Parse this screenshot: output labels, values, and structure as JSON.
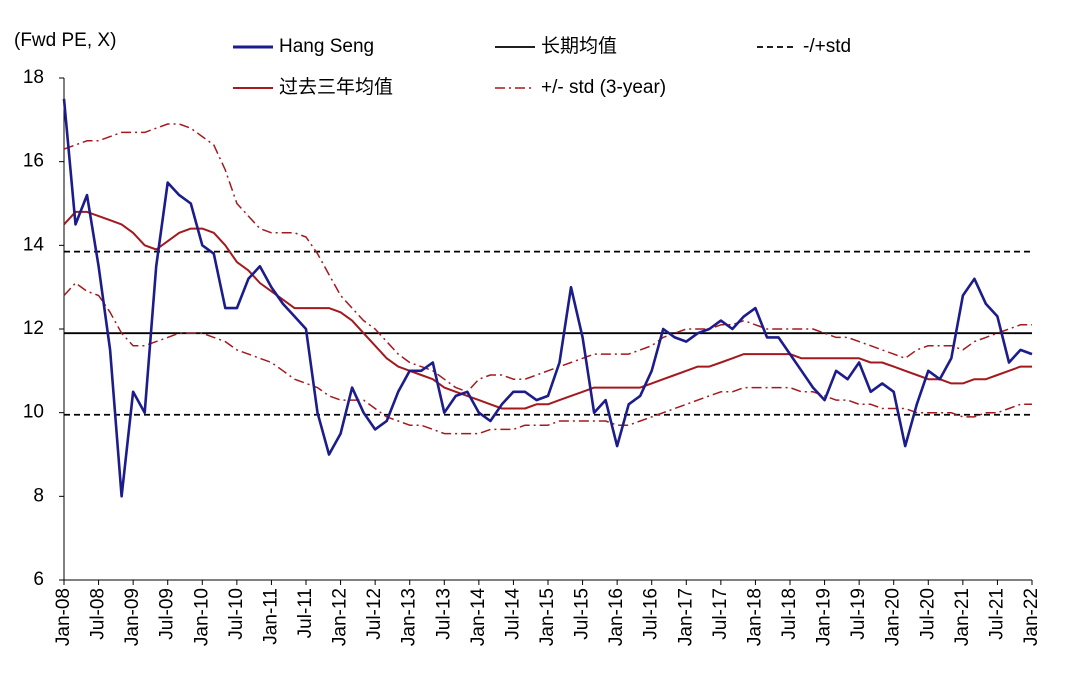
{
  "chart_data": {
    "type": "line",
    "y_label": "(Fwd PE, X)",
    "x": [
      "Jan-08",
      "Mar-08",
      "May-08",
      "Jul-08",
      "Sep-08",
      "Nov-08",
      "Jan-09",
      "Mar-09",
      "May-09",
      "Jul-09",
      "Sep-09",
      "Nov-09",
      "Jan-10",
      "Mar-10",
      "May-10",
      "Jul-10",
      "Sep-10",
      "Nov-10",
      "Jan-11",
      "Mar-11",
      "May-11",
      "Jul-11",
      "Sep-11",
      "Nov-11",
      "Jan-12",
      "Mar-12",
      "May-12",
      "Jul-12",
      "Sep-12",
      "Nov-12",
      "Jan-13",
      "Mar-13",
      "May-13",
      "Jul-13",
      "Sep-13",
      "Nov-13",
      "Jan-14",
      "Mar-14",
      "May-14",
      "Jul-14",
      "Sep-14",
      "Nov-14",
      "Jan-15",
      "Mar-15",
      "May-15",
      "Jul-15",
      "Sep-15",
      "Nov-15",
      "Jan-16",
      "Mar-16",
      "May-16",
      "Jul-16",
      "Sep-16",
      "Nov-16",
      "Jan-17",
      "Mar-17",
      "May-17",
      "Jul-17",
      "Sep-17",
      "Nov-17",
      "Jan-18",
      "Mar-18",
      "May-18",
      "Jul-18",
      "Sep-18",
      "Nov-18",
      "Jan-19",
      "Mar-19",
      "May-19",
      "Jul-19",
      "Sep-19",
      "Nov-19",
      "Jan-20",
      "Mar-20",
      "May-20",
      "Jul-20",
      "Sep-20",
      "Nov-20",
      "Jan-21",
      "Mar-21",
      "May-21",
      "Jul-21",
      "Sep-21",
      "Nov-21",
      "Jan-22"
    ],
    "xticks": [
      "Jan-08",
      "Jul-08",
      "Jan-09",
      "Jul-09",
      "Jan-10",
      "Jul-10",
      "Jan-11",
      "Jul-11",
      "Jan-12",
      "Jul-12",
      "Jan-13",
      "Jul-13",
      "Jan-14",
      "Jul-14",
      "Jan-15",
      "Jul-15",
      "Jan-16",
      "Jul-16",
      "Jan-17",
      "Jul-17",
      "Jan-18",
      "Jul-18",
      "Jan-19",
      "Jul-19",
      "Jan-20",
      "Jul-20",
      "Jan-21",
      "Jul-21",
      "Jan-22"
    ],
    "series": [
      {
        "name": "Hang Seng",
        "color": "#1c1c8c",
        "width": 2.6,
        "values": [
          17.5,
          14.5,
          15.2,
          13.5,
          11.5,
          8.0,
          10.5,
          10.0,
          13.5,
          15.5,
          15.2,
          15.0,
          14.0,
          13.8,
          12.5,
          12.5,
          13.2,
          13.5,
          13.0,
          12.6,
          12.3,
          12.0,
          10.0,
          9.0,
          9.5,
          10.6,
          10.0,
          9.6,
          9.8,
          10.5,
          11.0,
          11.0,
          11.2,
          10.0,
          10.4,
          10.5,
          10.0,
          9.8,
          10.2,
          10.5,
          10.5,
          10.3,
          10.4,
          11.2,
          13.0,
          11.8,
          10.0,
          10.3,
          9.2,
          10.2,
          10.4,
          11.0,
          12.0,
          11.8,
          11.7,
          11.9,
          12.0,
          12.2,
          12.0,
          12.3,
          12.5,
          11.8,
          11.8,
          11.4,
          11.0,
          10.6,
          10.3,
          11.0,
          10.8,
          11.2,
          10.5,
          10.7,
          10.5,
          9.2,
          10.2,
          11.0,
          10.8,
          11.3,
          12.8,
          13.2,
          12.6,
          12.3,
          11.2,
          11.5,
          11.4
        ]
      },
      {
        "name": "过去三年均值",
        "color": "#a3191e",
        "width": 2,
        "values": [
          14.5,
          14.8,
          14.8,
          14.7,
          14.6,
          14.5,
          14.3,
          14.0,
          13.9,
          14.1,
          14.3,
          14.4,
          14.4,
          14.3,
          14.0,
          13.6,
          13.4,
          13.1,
          12.9,
          12.7,
          12.5,
          12.5,
          12.5,
          12.5,
          12.4,
          12.2,
          11.9,
          11.6,
          11.3,
          11.1,
          11.0,
          10.9,
          10.8,
          10.6,
          10.5,
          10.4,
          10.3,
          10.2,
          10.1,
          10.1,
          10.1,
          10.2,
          10.2,
          10.3,
          10.4,
          10.5,
          10.6,
          10.6,
          10.6,
          10.6,
          10.6,
          10.7,
          10.8,
          10.9,
          11.0,
          11.1,
          11.1,
          11.2,
          11.3,
          11.4,
          11.4,
          11.4,
          11.4,
          11.4,
          11.3,
          11.3,
          11.3,
          11.3,
          11.3,
          11.3,
          11.2,
          11.2,
          11.1,
          11.0,
          10.9,
          10.8,
          10.8,
          10.7,
          10.7,
          10.8,
          10.8,
          10.9,
          11.0,
          11.1,
          11.1
        ]
      }
    ],
    "band": {
      "name": "+/- std (3-year)",
      "color": "#a3191e",
      "upper": [
        16.3,
        16.4,
        16.5,
        16.5,
        16.6,
        16.7,
        16.7,
        16.7,
        16.8,
        16.9,
        16.9,
        16.8,
        16.6,
        16.4,
        15.8,
        15.0,
        14.7,
        14.4,
        14.3,
        14.3,
        14.3,
        14.2,
        13.8,
        13.3,
        12.8,
        12.5,
        12.2,
        12.0,
        11.7,
        11.4,
        11.2,
        11.1,
        11.0,
        10.8,
        10.6,
        10.5,
        10.8,
        10.9,
        10.9,
        10.8,
        10.8,
        10.9,
        11.0,
        11.1,
        11.2,
        11.3,
        11.4,
        11.4,
        11.4,
        11.4,
        11.5,
        11.6,
        11.8,
        11.9,
        12.0,
        12.0,
        12.0,
        12.1,
        12.1,
        12.2,
        12.1,
        12.0,
        12.0,
        12.0,
        12.0,
        12.0,
        11.9,
        11.8,
        11.8,
        11.7,
        11.6,
        11.5,
        11.4,
        11.3,
        11.5,
        11.6,
        11.6,
        11.6,
        11.5,
        11.7,
        11.8,
        11.9,
        12.0,
        12.1,
        12.1
      ],
      "lower": [
        12.8,
        13.1,
        12.9,
        12.8,
        12.4,
        11.9,
        11.6,
        11.6,
        11.7,
        11.8,
        11.9,
        11.9,
        11.9,
        11.8,
        11.7,
        11.5,
        11.4,
        11.3,
        11.2,
        11.0,
        10.8,
        10.7,
        10.6,
        10.4,
        10.3,
        10.3,
        10.3,
        10.1,
        9.9,
        9.8,
        9.7,
        9.7,
        9.6,
        9.5,
        9.5,
        9.5,
        9.5,
        9.6,
        9.6,
        9.6,
        9.7,
        9.7,
        9.7,
        9.8,
        9.8,
        9.8,
        9.8,
        9.8,
        9.7,
        9.7,
        9.8,
        9.9,
        10.0,
        10.1,
        10.2,
        10.3,
        10.4,
        10.5,
        10.5,
        10.6,
        10.6,
        10.6,
        10.6,
        10.6,
        10.5,
        10.5,
        10.4,
        10.3,
        10.3,
        10.2,
        10.2,
        10.1,
        10.1,
        10.1,
        10.0,
        10.0,
        10.0,
        10.0,
        9.9,
        9.9,
        10.0,
        10.0,
        10.1,
        10.2,
        10.2
      ]
    },
    "reference_lines": [
      {
        "name": "长期均值",
        "color": "#000000",
        "dash": "solid",
        "values": [
          11.9
        ]
      },
      {
        "name": "-/+std",
        "color": "#000000",
        "dash": "dashed",
        "values": [
          9.95,
          13.85
        ]
      }
    ],
    "ylim": [
      6,
      18
    ],
    "yticks": [
      6,
      8,
      10,
      12,
      14,
      16,
      18
    ]
  }
}
